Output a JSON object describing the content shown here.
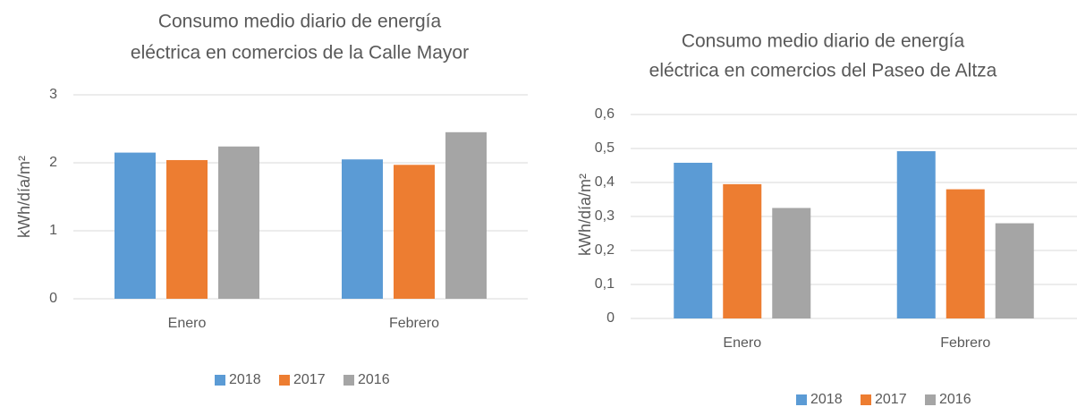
{
  "chart_data": [
    {
      "type": "bar",
      "title": [
        "Consumo medio diario de energía",
        "eléctrica en comercios de la Calle Mayor"
      ],
      "y_label": "kWh/día/m²",
      "categories": [
        "Enero",
        "Febrero"
      ],
      "series": [
        {
          "name": "2018",
          "color": "#5b9bd5",
          "values": [
            2.15,
            2.05
          ]
        },
        {
          "name": "2017",
          "color": "#ed7d31",
          "values": [
            2.04,
            1.97
          ]
        },
        {
          "name": "2016",
          "color": "#a5a5a5",
          "values": [
            2.24,
            2.45
          ]
        }
      ],
      "ylim": [
        0,
        3
      ],
      "yticks": [
        0,
        1,
        2,
        3
      ],
      "grid": true,
      "legend": "bottom"
    },
    {
      "type": "bar",
      "title": [
        "Consumo medio diario de energía",
        "eléctrica en comercios del Paseo de Altza"
      ],
      "y_label": "kWh/día/m²",
      "categories": [
        "Enero",
        "Febrero"
      ],
      "series": [
        {
          "name": "2018",
          "color": "#5b9bd5",
          "values": [
            0.458,
            0.492
          ]
        },
        {
          "name": "2017",
          "color": "#ed7d31",
          "values": [
            0.395,
            0.38
          ]
        },
        {
          "name": "2016",
          "color": "#a5a5a5",
          "values": [
            0.325,
            0.28
          ]
        }
      ],
      "ylim": [
        0,
        0.6
      ],
      "yticks": [
        0,
        {
          "value": 0.1,
          "label": "0,1"
        },
        {
          "value": 0.2,
          "label": "0,2"
        },
        {
          "value": 0.3,
          "label": "0,3"
        },
        {
          "value": 0.4,
          "label": "0,4"
        },
        {
          "value": 0.5,
          "label": "0,5"
        },
        {
          "value": 0.6,
          "label": "0,6"
        }
      ],
      "grid": true,
      "legend": "bottom"
    }
  ]
}
